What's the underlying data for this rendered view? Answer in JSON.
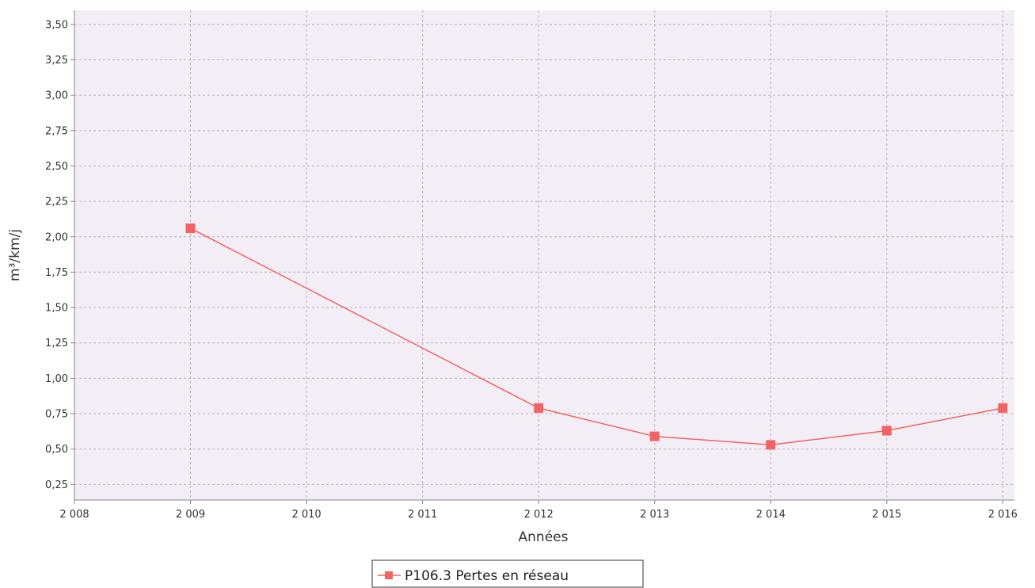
{
  "chart_data": {
    "type": "line",
    "title": "",
    "xlabel": "Années",
    "ylabel": "m³/km/j",
    "x_ticks": [
      {
        "value": 2008,
        "label": "2 008"
      },
      {
        "value": 2009,
        "label": "2 009"
      },
      {
        "value": 2010,
        "label": "2 010"
      },
      {
        "value": 2011,
        "label": "2 011"
      },
      {
        "value": 2012,
        "label": "2 012"
      },
      {
        "value": 2013,
        "label": "2 013"
      },
      {
        "value": 2014,
        "label": "2 014"
      },
      {
        "value": 2015,
        "label": "2 015"
      },
      {
        "value": 2016,
        "label": "2 016"
      }
    ],
    "y_ticks": [
      {
        "value": 0.25,
        "label": "0,25"
      },
      {
        "value": 0.5,
        "label": "0,50"
      },
      {
        "value": 0.75,
        "label": "0,75"
      },
      {
        "value": 1.0,
        "label": "1,00"
      },
      {
        "value": 1.25,
        "label": "1,25"
      },
      {
        "value": 1.5,
        "label": "1,50"
      },
      {
        "value": 1.75,
        "label": "1,75"
      },
      {
        "value": 2.0,
        "label": "2,00"
      },
      {
        "value": 2.25,
        "label": "2,25"
      },
      {
        "value": 2.5,
        "label": "2,50"
      },
      {
        "value": 2.75,
        "label": "2,75"
      },
      {
        "value": 3.0,
        "label": "3,00"
      },
      {
        "value": 3.25,
        "label": "3,25"
      },
      {
        "value": 3.5,
        "label": "3,50"
      }
    ],
    "xlim": [
      2008,
      2016.1
    ],
    "ylim": [
      0.14,
      3.6
    ],
    "grid": true,
    "legend_position": "bottom",
    "colors": {
      "plot_background": "#f3eef5",
      "series": "#f26464",
      "grid": "#b8b4c0",
      "axis": "#888888"
    },
    "series": [
      {
        "name": "P106.3 Pertes en réseau",
        "x": [
          2009,
          2012,
          2013,
          2014,
          2015,
          2016
        ],
        "y": [
          2.06,
          0.79,
          0.59,
          0.53,
          0.63,
          0.79
        ],
        "marker": "square"
      }
    ]
  }
}
